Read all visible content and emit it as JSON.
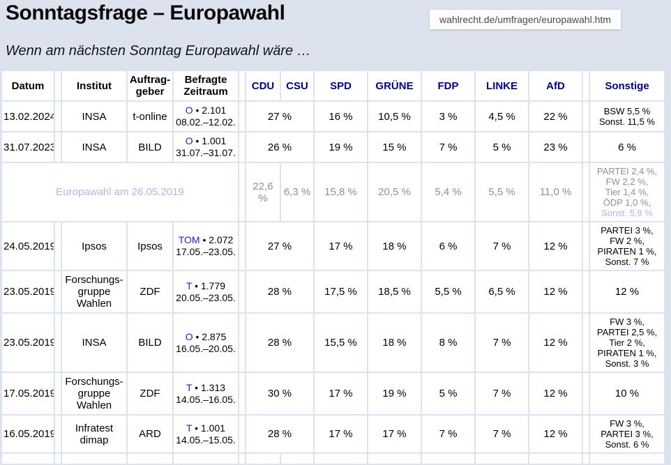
{
  "page": {
    "title": "Sonntagsfrage – Europawahl",
    "url": "wahlrecht.de/umfragen/europawahl.htm",
    "subtitle": "Wenn am nächsten Sonntag Europawahl wäre …"
  },
  "colors": {
    "page_background": "#dce3ee",
    "party_header": "#00008b",
    "link_blue": "#2222cc",
    "visited_lavender": "#b5b2e9",
    "election_gray": "#8f8f8f"
  },
  "table": {
    "headers": {
      "datum": "Datum",
      "institut": "Institut",
      "auftraggeber_line1": "Auftrag-",
      "auftraggeber_line2": "geber",
      "befragte_line1": "Befragte",
      "befragte_line2": "Zeitraum",
      "parties": [
        "CDU",
        "CSU",
        "SPD",
        "GRÜNE",
        "FDP",
        "LINKE",
        "AfD",
        "Sonstige"
      ]
    },
    "rows": [
      {
        "type": "poll",
        "datum": "13.02.2024",
        "institut_lines": [
          "INSA"
        ],
        "auftraggeber": "t-online",
        "befragte_link": "O",
        "befragte_rest": " • 2.101",
        "zeitraum": "08.02.–12.02.",
        "cdu_csu": "27 %",
        "spd": "16 %",
        "gruene": "10,5 %",
        "fdp": "3 %",
        "linke": "4,5 %",
        "afd": "22 %",
        "sonstige_lines": [
          "BSW 5,5 %",
          "Sonst. 11,5 %"
        ]
      },
      {
        "type": "poll",
        "datum": "31.07.2023",
        "institut_lines": [
          "INSA"
        ],
        "auftraggeber": "BILD",
        "befragte_link": "O",
        "befragte_rest": " • 1.001",
        "zeitraum": "31.07.–31.07.",
        "cdu_csu": "26 %",
        "spd": "19 %",
        "gruene": "15 %",
        "fdp": "7 %",
        "linke": "5 %",
        "afd": "23 %",
        "sonstige_lines": [
          "6 %"
        ]
      },
      {
        "type": "election",
        "label": "Europawahl am 26.05.2019",
        "cdu": "22,6 %",
        "csu": "6,3 %",
        "spd": "15,8 %",
        "gruene": "20,5 %",
        "fdp": "5,4 %",
        "linke": "5,5 %",
        "afd": "11,0 %",
        "sonstige_lines": [
          "PARTEI 2,4 %,",
          "FW 2,2 %,",
          "Tier 1,4 %,",
          "ÖDP 1,0 %,"
        ],
        "sonstige_link": "Sonst. 5,9 %"
      },
      {
        "type": "poll",
        "datum": "24.05.2019",
        "institut_lines": [
          "Ipsos"
        ],
        "auftraggeber": "Ipsos",
        "befragte_link": "TOM",
        "befragte_rest": " • 2.072",
        "zeitraum": "17.05.–23.05.",
        "cdu_csu": "27 %",
        "spd": "17 %",
        "gruene": "18 %",
        "fdp": "6 %",
        "linke": "7 %",
        "afd": "12 %",
        "sonstige_lines": [
          "PARTEI 3 %,",
          "FW 2 %,",
          "PIRATEN 1 %,",
          "Sonst. 7 %"
        ]
      },
      {
        "type": "poll",
        "datum": "23.05.2019",
        "institut_lines": [
          "Forschungs-",
          "gruppe Wahlen"
        ],
        "auftraggeber": "ZDF",
        "befragte_link": "T",
        "befragte_rest": " • 1.779",
        "zeitraum": "20.05.–23.05.",
        "cdu_csu": "28 %",
        "spd": "17,5 %",
        "gruene": "18,5 %",
        "fdp": "5,5 %",
        "linke": "6,5 %",
        "afd": "12 %",
        "sonstige_lines": [
          "12 %"
        ]
      },
      {
        "type": "poll",
        "datum": "23.05.2019",
        "institut_lines": [
          "INSA"
        ],
        "auftraggeber": "BILD",
        "befragte_link": "O",
        "befragte_rest": " • 2.875",
        "zeitraum": "16.05.–20.05.",
        "cdu_csu": "28 %",
        "spd": "15,5 %",
        "gruene": "18 %",
        "fdp": "8 %",
        "linke": "7 %",
        "afd": "12 %",
        "sonstige_lines": [
          "FW 3 %,",
          "PARTEI 2,5 %,",
          "Tier 2 %,",
          "PIRATEN 1 %,",
          "Sonst. 3 %"
        ]
      },
      {
        "type": "poll",
        "datum": "17.05.2019",
        "institut_lines": [
          "Forschungs-",
          "gruppe Wahlen"
        ],
        "auftraggeber": "ZDF",
        "befragte_link": "T",
        "befragte_rest": " • 1.313",
        "zeitraum": "14.05.–16.05.",
        "cdu_csu": "30 %",
        "spd": "17 %",
        "gruene": "19 %",
        "fdp": "5 %",
        "linke": "7 %",
        "afd": "12 %",
        "sonstige_lines": [
          "10 %"
        ]
      },
      {
        "type": "poll",
        "datum": "16.05.2019",
        "institut_lines": [
          "Infratest",
          "dimap"
        ],
        "auftraggeber": "ARD",
        "befragte_link": "T",
        "befragte_rest": " • 1.001",
        "zeitraum": "14.05.–15.05.",
        "cdu_csu": "28 %",
        "spd": "17 %",
        "gruene": "17 %",
        "fdp": "7 %",
        "linke": "7 %",
        "afd": "12 %",
        "sonstige_lines": [
          "FW 3 %,",
          "PARTEI 3 %,",
          "Sonst. 6 %"
        ]
      },
      {
        "type": "stub"
      }
    ]
  }
}
